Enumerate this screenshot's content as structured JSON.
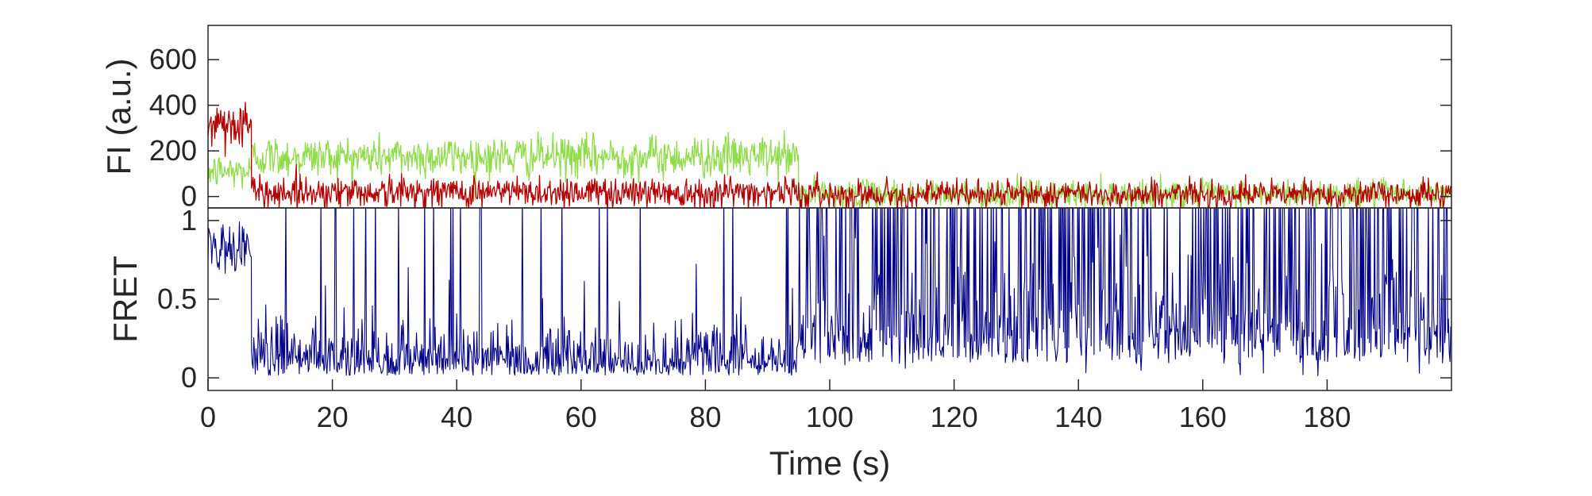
{
  "chart_data": [
    {
      "type": "line",
      "panel": "top",
      "ylabel": "FI (a.u.)",
      "xlim": [
        0,
        200
      ],
      "ylim": [
        -50,
        750
      ],
      "yticks": [
        0,
        200,
        400,
        600
      ],
      "yticklabels": [
        "0",
        "200",
        "400",
        "600"
      ],
      "grid": false,
      "legend": "none",
      "noise_segments_note_free": true,
      "series": [
        {
          "color": "#8fdb4a",
          "segments": [
            {
              "x": [
                0,
                7
              ],
              "mean": 110,
              "sd": 40
            },
            {
              "x": [
                7,
                95
              ],
              "mean": 175,
              "sd": 45
            },
            {
              "x": [
                95,
                200
              ],
              "mean": 10,
              "sd": 30
            }
          ]
        },
        {
          "color": "#b50000",
          "segments": [
            {
              "x": [
                0,
                7
              ],
              "mean": 320,
              "sd": 55
            },
            {
              "x": [
                7,
                95
              ],
              "mean": 20,
              "sd": 35
            },
            {
              "x": [
                95,
                200
              ],
              "mean": 10,
              "sd": 30
            }
          ]
        }
      ]
    },
    {
      "type": "line",
      "panel": "bottom",
      "ylabel": "FRET",
      "xlabel": "Time (s)",
      "xlim": [
        0,
        200
      ],
      "ylim": [
        -0.08,
        1.08
      ],
      "xticks": [
        0,
        20,
        40,
        60,
        80,
        100,
        120,
        140,
        160,
        180
      ],
      "xticklabels": [
        "0",
        "20",
        "40",
        "60",
        "80",
        "100",
        "120",
        "140",
        "160",
        "180"
      ],
      "yticks": [
        0,
        0.5,
        1
      ],
      "yticklabels": [
        "0",
        "0.5",
        "1"
      ],
      "grid": false,
      "legend": "none",
      "series": [
        {
          "color": "#000088",
          "segments": [
            {
              "x": [
                0,
                7
              ],
              "mean": 0.82,
              "sd": 0.08
            },
            {
              "x": [
                7,
                95
              ],
              "mean": 0.05,
              "sd": 0.25,
              "spike_prob": 0.04
            },
            {
              "x": [
                95,
                200
              ],
              "mean": 0.3,
              "sd": 0.45,
              "spike_prob": 0.25
            }
          ]
        }
      ]
    }
  ]
}
